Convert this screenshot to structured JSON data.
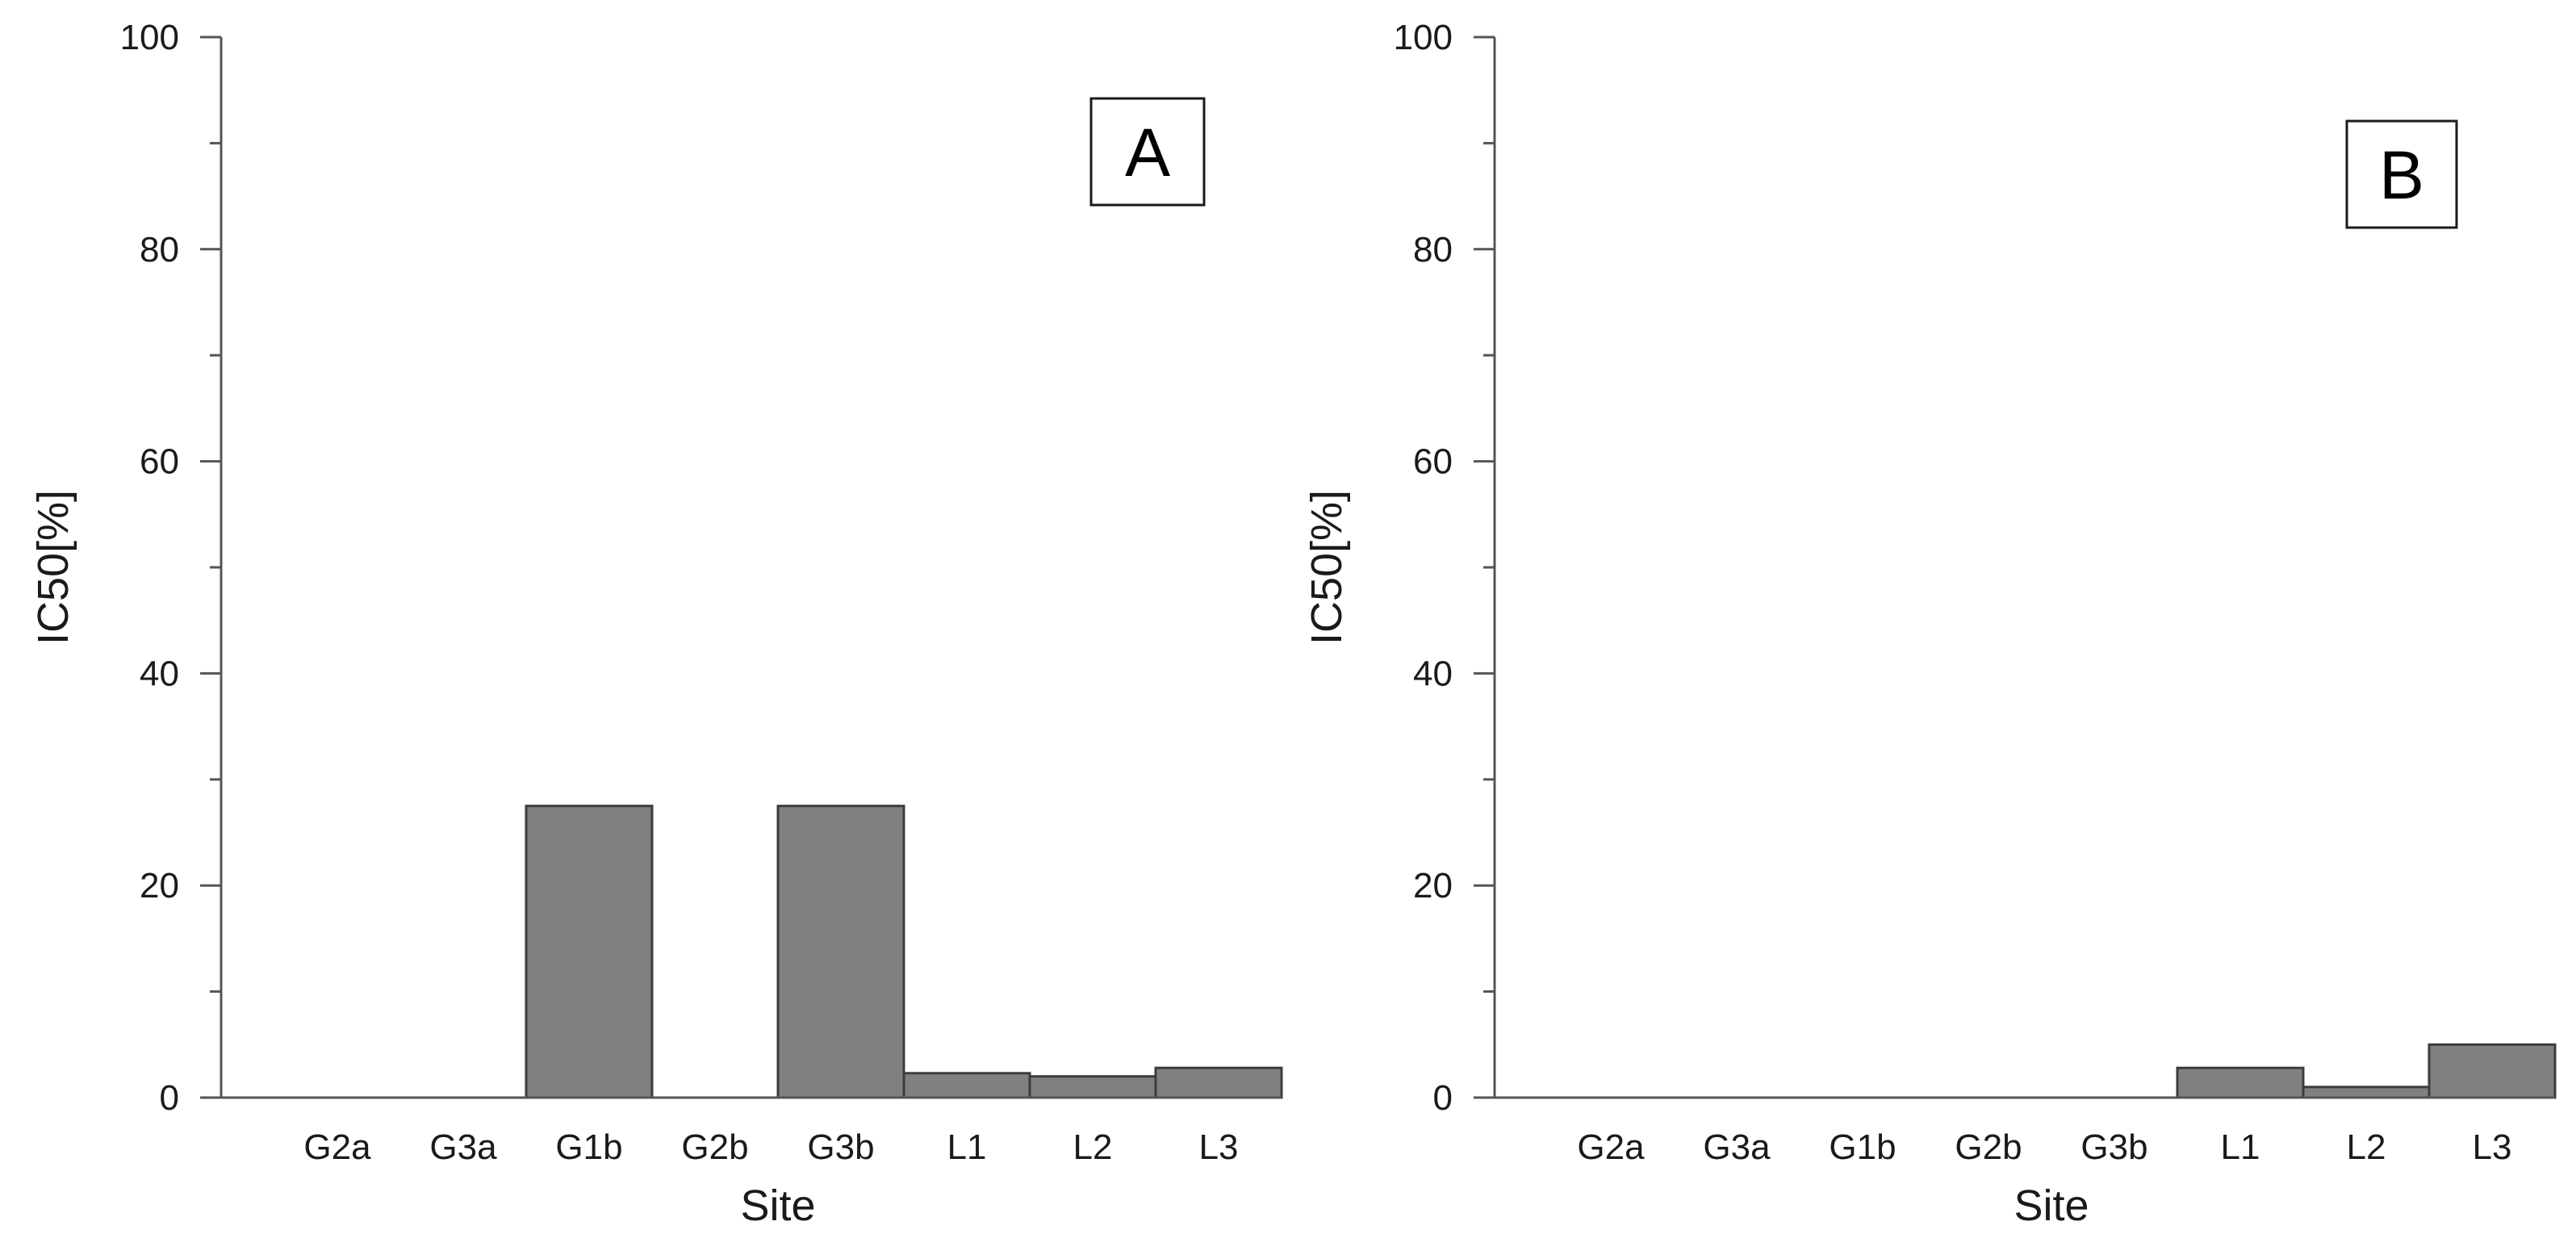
{
  "chart_data": [
    {
      "type": "bar",
      "panel_label": "A",
      "categories": [
        "G2a",
        "G3a",
        "G1b",
        "G2b",
        "G3b",
        "L1",
        "L2",
        "L3"
      ],
      "values": [
        0,
        0,
        27.5,
        0,
        27.5,
        2.3,
        2.0,
        2.8
      ],
      "xlabel": "Site",
      "ylabel": "IC50[%]",
      "ylim": [
        0,
        100
      ],
      "yticks": [
        0,
        20,
        40,
        60,
        80,
        100
      ],
      "bar_color": "#808080"
    },
    {
      "type": "bar",
      "panel_label": "B",
      "categories": [
        "G2a",
        "G3a",
        "G1b",
        "G2b",
        "G3b",
        "L1",
        "L2",
        "L3"
      ],
      "values": [
        0,
        0,
        0,
        0,
        0,
        2.8,
        1.0,
        5.0
      ],
      "xlabel": "Site",
      "ylabel": "IC50[%]",
      "ylim": [
        0,
        100
      ],
      "yticks": [
        0,
        20,
        40,
        60,
        80,
        100
      ],
      "bar_color": "#808080"
    }
  ]
}
